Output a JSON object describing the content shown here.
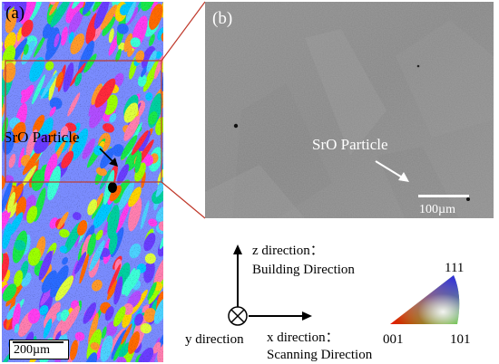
{
  "panel_a": {
    "label": "(a)",
    "particle_label": "SrO Particle",
    "scale_bar": "200µm"
  },
  "panel_b": {
    "label": "(b)",
    "particle_label": "SrO Particle",
    "scale_bar": "100µm"
  },
  "axes": {
    "z_line1": "z direction：",
    "z_line2": "Building Direction",
    "y_label": "y direction",
    "x_line1": "x direction：",
    "x_line2": "Scanning Direction"
  },
  "ipf": {
    "top": "111",
    "left": "001",
    "right": "101"
  },
  "colors": {
    "zoom_box": "#c0392b",
    "sem_gray": "#8a8a8a"
  }
}
